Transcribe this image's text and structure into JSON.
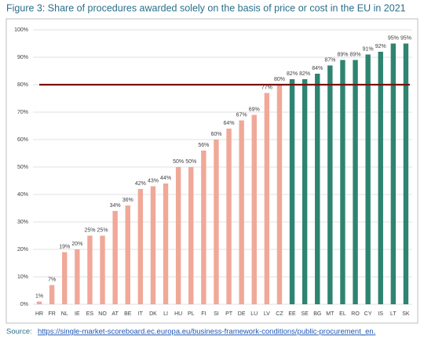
{
  "chart_data": {
    "type": "bar",
    "title": "Figure 3: Share of procedures awarded solely on the basis of price or cost in the EU in 2021",
    "source_label": "Source:",
    "source_url": "https://single-market-scoreboard.ec.europa.eu/business-framework-conditions/public-procurement_en.",
    "categories": [
      "HR",
      "FR",
      "NL",
      "IE",
      "ES",
      "NO",
      "AT",
      "BE",
      "IT",
      "DK",
      "LI",
      "HU",
      "PL",
      "FI",
      "SI",
      "PT",
      "DE",
      "LU",
      "LV",
      "CZ",
      "EE",
      "SE",
      "BG",
      "MT",
      "EL",
      "RO",
      "CY",
      "IS",
      "LT",
      "SK"
    ],
    "values": [
      1,
      7,
      19,
      20,
      25,
      25,
      34,
      36,
      42,
      43,
      44,
      50,
      50,
      56,
      60,
      64,
      67,
      69,
      77,
      80,
      82,
      82,
      84,
      87,
      89,
      89,
      91,
      92,
      95,
      95
    ],
    "value_labels": [
      "1%",
      "7%",
      "19%",
      "20%",
      "25%",
      "25%",
      "34%",
      "36%",
      "42%",
      "43%",
      "44%",
      "50%",
      "50%",
      "56%",
      "60%",
      "64%",
      "67%",
      "69%",
      "77%",
      "80%",
      "82%",
      "82%",
      "84%",
      "87%",
      "89%",
      "89%",
      "91%",
      "92%",
      "95%",
      "95%"
    ],
    "colors": [
      "#f0a898",
      "#f0a898",
      "#f0a898",
      "#f0a898",
      "#f0a898",
      "#f0a898",
      "#f0a898",
      "#f0a898",
      "#f0a898",
      "#f0a898",
      "#f0a898",
      "#f0a898",
      "#f0a898",
      "#f0a898",
      "#f0a898",
      "#f0a898",
      "#f0a898",
      "#f0a898",
      "#f0a898",
      "#f0a898",
      "#2e8470",
      "#2e8470",
      "#2e8470",
      "#2e8470",
      "#2e8470",
      "#2e8470",
      "#2e8470",
      "#2e8470",
      "#2e8470",
      "#2e8470"
    ],
    "reference_line": {
      "value": 80,
      "color": "#7a1010"
    },
    "ylim": [
      0,
      100
    ],
    "yticks": [
      {
        "value": 0,
        "label": "0%"
      },
      {
        "value": 10,
        "label": "10%"
      },
      {
        "value": 20,
        "label": "20%"
      },
      {
        "value": 30,
        "label": "30%"
      },
      {
        "value": 40,
        "label": "40%"
      },
      {
        "value": 50,
        "label": "50%"
      },
      {
        "value": 60,
        "label": "60%"
      },
      {
        "value": 70,
        "label": "70%"
      },
      {
        "value": 80,
        "label": "80%"
      },
      {
        "value": 90,
        "label": "90%"
      },
      {
        "value": 100,
        "label": "100%"
      }
    ],
    "grid": true
  }
}
